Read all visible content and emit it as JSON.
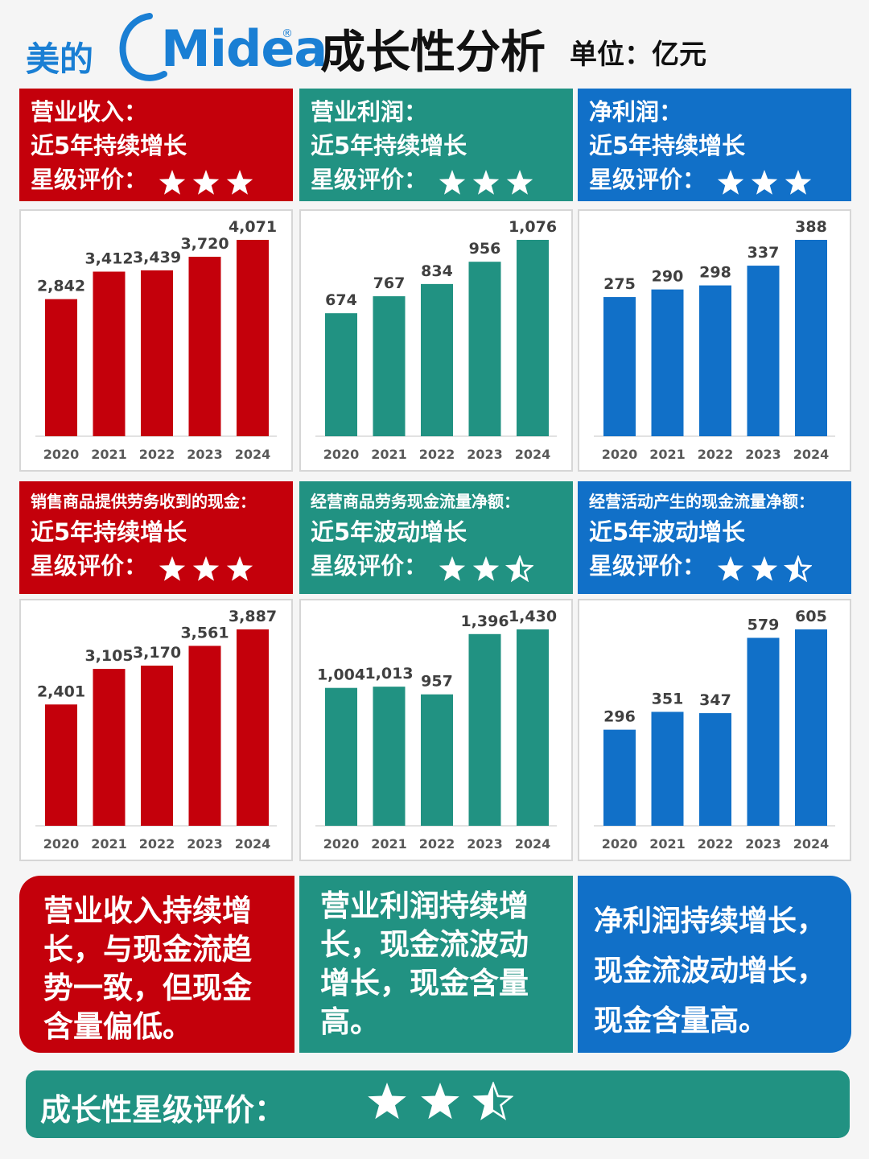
{
  "header": {
    "logo_cn": "美的",
    "logo_en": "Midea",
    "logo_mark": "®",
    "title": "成长性分析",
    "unit": "单位：亿元"
  },
  "colors": {
    "red": "#c4000b",
    "teal": "#219282",
    "blue": "#1170c8"
  },
  "panels": [
    {
      "line1": "营业收入：",
      "line2": "近5年持续增长",
      "rating_label": "星级评价：",
      "stars": 3
    },
    {
      "line1": "营业利润：",
      "line2": "近5年持续增长",
      "rating_label": "星级评价：",
      "stars": 3
    },
    {
      "line1": "净利润：",
      "line2": "近5年持续增长",
      "rating_label": "星级评价：",
      "stars": 3
    },
    {
      "line1": "销售商品提供劳务收到的现金：",
      "line2": "近5年持续增长",
      "rating_label": "星级评价：",
      "stars": 3
    },
    {
      "line1": "经营商品劳务现金流量净额：",
      "line2": "近5年波动增长",
      "rating_label": "星级评价：",
      "stars": 2.5
    },
    {
      "line1": "经营活动产生的现金流量净额：",
      "line2": "近5年波动增长",
      "rating_label": "星级评价：",
      "stars": 2.5
    }
  ],
  "chart_data": [
    {
      "type": "bar",
      "categories": [
        "2020",
        "2021",
        "2022",
        "2023",
        "2024"
      ],
      "values": [
        2842,
        3412,
        3439,
        3720,
        4071
      ],
      "labels": [
        "2,842",
        "3,412",
        "3,439",
        "3,720",
        "4,071"
      ],
      "color": "#c4000b"
    },
    {
      "type": "bar",
      "categories": [
        "2020",
        "2021",
        "2022",
        "2023",
        "2024"
      ],
      "values": [
        674,
        767,
        834,
        956,
        1076
      ],
      "labels": [
        "674",
        "767",
        "834",
        "956",
        "1,076"
      ],
      "color": "#219282"
    },
    {
      "type": "bar",
      "categories": [
        "2020",
        "2021",
        "2022",
        "2023",
        "2024"
      ],
      "values": [
        275,
        290,
        298,
        337,
        388
      ],
      "labels": [
        "275",
        "290",
        "298",
        "337",
        "388"
      ],
      "color": "#1170c8"
    },
    {
      "type": "bar",
      "categories": [
        "2020",
        "2021",
        "2022",
        "2023",
        "2024"
      ],
      "values": [
        2401,
        3105,
        3170,
        3561,
        3887
      ],
      "labels": [
        "2,401",
        "3,105",
        "3,170",
        "3,561",
        "3,887"
      ],
      "color": "#c4000b"
    },
    {
      "type": "bar",
      "categories": [
        "2020",
        "2021",
        "2022",
        "2023",
        "2024"
      ],
      "values": [
        1004,
        1013,
        957,
        1396,
        1430
      ],
      "labels": [
        "1,004",
        "1,013",
        "957",
        "1,396",
        "1,430"
      ],
      "color": "#219282"
    },
    {
      "type": "bar",
      "categories": [
        "2020",
        "2021",
        "2022",
        "2023",
        "2024"
      ],
      "values": [
        296,
        351,
        347,
        579,
        605
      ],
      "labels": [
        "296",
        "351",
        "347",
        "579",
        "605"
      ],
      "color": "#1170c8"
    }
  ],
  "summaries": [
    "营业收入持续增长，与现金流趋势一致，但现金含量偏低。",
    "营业利润持续增长，现金流波动增长，现金含量高。",
    "净利润持续增长，现金流波动增长，现金含量高。"
  ],
  "summary_lines": [
    [
      "营业收入持续增",
      "长，与现金流趋",
      "势一致，但现金",
      "含量偏低。"
    ],
    [
      "营业利润持续增",
      "长，现金流波动",
      "增长，现金含量",
      "高。"
    ],
    [
      "净利润持续增长，",
      "现金流波动增长，",
      "现金含量高。"
    ]
  ],
  "footer": {
    "label": "成长性星级评价：",
    "stars": 2.5
  }
}
